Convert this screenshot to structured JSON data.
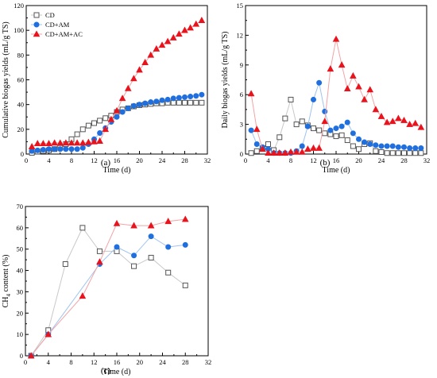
{
  "panel_labels": [
    "(a)",
    "(b)",
    "(c)"
  ],
  "colors": {
    "cd": "#555555",
    "am": "#1f6fdf",
    "ac": "#e8131c",
    "cd_line": "#c8c8c8",
    "am_line": "#9ec3f0",
    "ac_line": "#f3a3a6"
  },
  "chart_data": [
    {
      "type": "scatter",
      "panel": "(a)",
      "xlabel": "Time (d)",
      "ylabel": "Cumulative biogas yields (mL/g TS)",
      "xlim": [
        0,
        32
      ],
      "ylim": [
        0,
        120
      ],
      "xticks": [
        0,
        4,
        8,
        12,
        16,
        20,
        24,
        28,
        32
      ],
      "yticks": [
        0,
        20,
        40,
        60,
        80,
        100,
        120
      ],
      "legend_position": "top-left",
      "series": [
        {
          "name": "CD",
          "marker": "open-square",
          "x": [
            1,
            2,
            3,
            4,
            5,
            6,
            7,
            8,
            9,
            10,
            11,
            12,
            13,
            14,
            15,
            16,
            17,
            18,
            19,
            20,
            21,
            22,
            23,
            24,
            25,
            26,
            27,
            28,
            29,
            30,
            31
          ],
          "y": [
            1,
            2,
            2.5,
            3,
            4,
            5,
            8,
            12,
            16,
            20,
            23,
            25,
            27,
            29,
            31,
            34,
            36,
            37,
            38.5,
            39.5,
            40,
            40.5,
            41,
            41,
            41.5,
            41.5,
            41.5,
            41.5,
            41.5,
            41.5,
            41.5
          ]
        },
        {
          "name": "CD+AM",
          "marker": "filled-circle",
          "x": [
            1,
            2,
            3,
            4,
            5,
            6,
            7,
            8,
            9,
            10,
            11,
            12,
            13,
            14,
            15,
            16,
            17,
            18,
            19,
            20,
            21,
            22,
            23,
            24,
            25,
            26,
            27,
            28,
            29,
            30,
            31
          ],
          "y": [
            2.5,
            3,
            3.5,
            4,
            4,
            4,
            4,
            4,
            4,
            5,
            8,
            12,
            17,
            21,
            26,
            30,
            34,
            37,
            39,
            40,
            41,
            42,
            42.5,
            43.5,
            44,
            45,
            45.5,
            46,
            46.5,
            47,
            48
          ]
        },
        {
          "name": "CD+AM+AC",
          "marker": "filled-triangle",
          "x": [
            1,
            2,
            3,
            4,
            5,
            6,
            7,
            8,
            9,
            10,
            11,
            12,
            13,
            14,
            15,
            16,
            17,
            18,
            19,
            20,
            21,
            22,
            23,
            24,
            25,
            26,
            27,
            28,
            29,
            30,
            31
          ],
          "y": [
            6,
            8.5,
            8.5,
            8.5,
            9,
            9,
            9,
            9,
            9,
            9,
            9.5,
            10,
            10.5,
            20,
            28,
            35,
            45,
            53,
            61,
            68,
            74,
            80,
            85,
            88,
            91,
            94,
            97,
            100,
            102,
            105,
            108
          ]
        }
      ]
    },
    {
      "type": "scatter",
      "panel": "(b)",
      "xlabel": "Time (d)",
      "ylabel": "Daily biogas yields (mL/g TS)",
      "xlim": [
        0,
        32
      ],
      "ylim": [
        0,
        15
      ],
      "xticks": [
        0,
        4,
        8,
        12,
        16,
        20,
        24,
        28,
        32
      ],
      "yticks": [
        0,
        3,
        6,
        9,
        12,
        15
      ],
      "series": [
        {
          "name": "CD",
          "marker": "open-square",
          "x": [
            1,
            2,
            3,
            4,
            5,
            6,
            7,
            8,
            9,
            10,
            11,
            12,
            13,
            14,
            15,
            16,
            17,
            18,
            19,
            20,
            21,
            22,
            23,
            24,
            25,
            26,
            27,
            28,
            29,
            30,
            31
          ],
          "y": [
            0.1,
            0.3,
            0.6,
            1.0,
            0.4,
            1.7,
            3.6,
            5.5,
            3.0,
            3.3,
            2.9,
            2.6,
            2.4,
            2.1,
            2.0,
            1.8,
            1.9,
            1.4,
            0.8,
            0.5,
            1.0,
            1.1,
            0.3,
            0.2,
            0.1,
            0.1,
            0.1,
            0.1,
            0.1,
            0.1,
            0.1
          ]
        },
        {
          "name": "CD+AM",
          "marker": "filled-circle",
          "x": [
            1,
            2,
            3,
            4,
            5,
            6,
            7,
            8,
            9,
            10,
            11,
            12,
            13,
            14,
            15,
            16,
            17,
            18,
            19,
            20,
            21,
            22,
            23,
            24,
            25,
            26,
            27,
            28,
            29,
            30,
            31
          ],
          "y": [
            2.4,
            1.0,
            0.7,
            0.5,
            0.1,
            0.1,
            0.1,
            0.1,
            0.3,
            0.8,
            2.8,
            5.5,
            7.2,
            4.3,
            2.4,
            2.6,
            2.8,
            3.2,
            2.1,
            1.5,
            1.2,
            1.0,
            0.9,
            0.8,
            0.8,
            0.8,
            0.7,
            0.7,
            0.6,
            0.6,
            0.6
          ]
        },
        {
          "name": "CD+AM+AC",
          "marker": "filled-triangle",
          "x": [
            1,
            2,
            3,
            4,
            5,
            6,
            7,
            8,
            9,
            10,
            11,
            12,
            13,
            14,
            15,
            16,
            17,
            18,
            19,
            20,
            21,
            22,
            23,
            24,
            25,
            26,
            27,
            28,
            29,
            30,
            31
          ],
          "y": [
            6.1,
            2.5,
            0.5,
            0.1,
            0.1,
            0.1,
            0.1,
            0.2,
            0.2,
            0.2,
            0.5,
            0.6,
            0.6,
            3.3,
            8.6,
            11.6,
            9.0,
            6.6,
            7.9,
            6.8,
            5.5,
            6.5,
            4.5,
            3.8,
            3.2,
            3.3,
            3.6,
            3.4,
            3.0,
            3.1,
            2.7
          ]
        }
      ]
    },
    {
      "type": "scatter",
      "panel": "(c)",
      "xlabel": "Time (d)",
      "ylabel": "CH4 content (%)",
      "xlim": [
        0,
        32
      ],
      "ylim": [
        0,
        70
      ],
      "xticks": [
        0,
        4,
        8,
        12,
        16,
        20,
        24,
        28,
        32
      ],
      "yticks": [
        0,
        10,
        20,
        30,
        40,
        50,
        60,
        70
      ],
      "series": [
        {
          "name": "CD",
          "marker": "open-square",
          "x": [
            1,
            4,
            7,
            10,
            13,
            16,
            19,
            22,
            25,
            28
          ],
          "y": [
            0,
            12,
            43,
            60,
            49,
            49,
            42,
            46,
            39,
            33
          ]
        },
        {
          "name": "CD+AM",
          "marker": "filled-circle",
          "x": [
            1,
            4,
            13,
            16,
            19,
            22,
            25,
            28
          ],
          "y": [
            0,
            10,
            43,
            51,
            47,
            56,
            51,
            52
          ]
        },
        {
          "name": "CD+AM+AC",
          "marker": "filled-triangle",
          "x": [
            1,
            4,
            10,
            13,
            16,
            19,
            22,
            25,
            28
          ],
          "y": [
            0,
            10,
            28,
            44,
            62,
            61,
            61,
            63,
            64
          ]
        }
      ]
    }
  ]
}
